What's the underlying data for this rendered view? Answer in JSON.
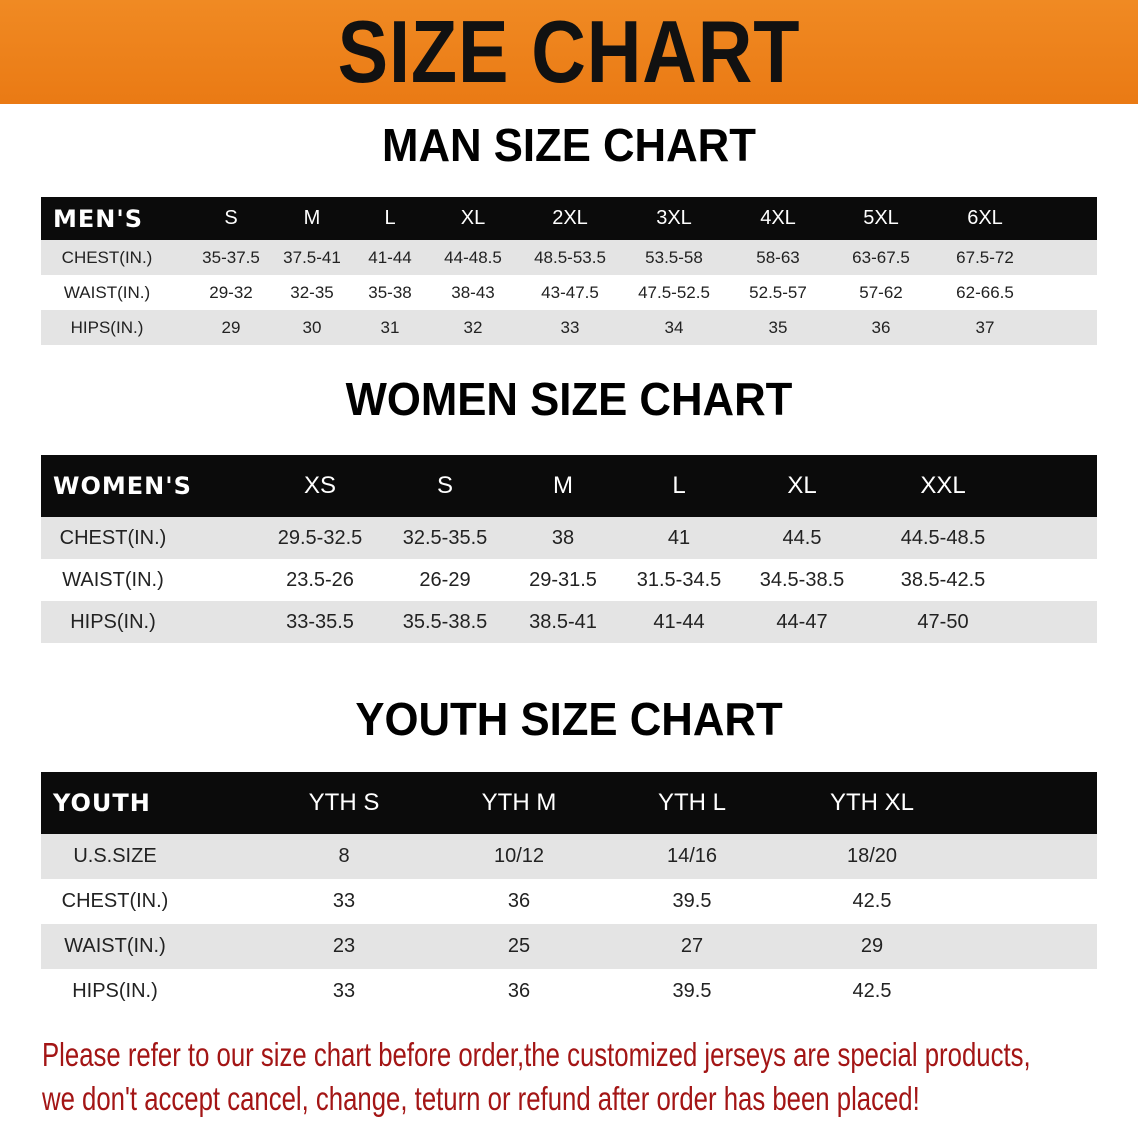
{
  "banner": {
    "title": "SIZE CHART",
    "color": "#ee8019"
  },
  "men": {
    "title": "MAN SIZE CHART",
    "header": [
      "MEN'S",
      "S",
      "M",
      "L",
      "XL",
      "2XL",
      "3XL",
      "4XL",
      "5XL",
      "6XL"
    ],
    "rows": [
      [
        "CHEST(IN.)",
        "35-37.5",
        "37.5-41",
        "41-44",
        "44-48.5",
        "48.5-53.5",
        "53.5-58",
        "58-63",
        "63-67.5",
        "67.5-72"
      ],
      [
        "WAIST(IN.)",
        "29-32",
        "32-35",
        "35-38",
        "38-43",
        "43-47.5",
        "47.5-52.5",
        "52.5-57",
        "57-62",
        "62-66.5"
      ],
      [
        "HIPS(IN.)",
        "29",
        "30",
        "31",
        "32",
        "33",
        "34",
        "35",
        "36",
        "37"
      ]
    ]
  },
  "women": {
    "title": "WOMEN SIZE CHART",
    "header": [
      "WOMEN'S",
      "XS",
      "S",
      "M",
      "L",
      "XL",
      "XXL"
    ],
    "rows": [
      [
        "CHEST(IN.)",
        "29.5-32.5",
        "32.5-35.5",
        "38",
        "41",
        "44.5",
        "44.5-48.5"
      ],
      [
        "WAIST(IN.)",
        "23.5-26",
        "26-29",
        "29-31.5",
        "31.5-34.5",
        "34.5-38.5",
        "38.5-42.5"
      ],
      [
        "HIPS(IN.)",
        "33-35.5",
        "35.5-38.5",
        "38.5-41",
        "41-44",
        "44-47",
        "47-50"
      ]
    ]
  },
  "youth": {
    "title": "YOUTH SIZE CHART",
    "header": [
      "YOUTH",
      "YTH S",
      "YTH M",
      "YTH L",
      "YTH XL"
    ],
    "rows": [
      [
        "U.S.SIZE",
        "8",
        "10/12",
        "14/16",
        "18/20"
      ],
      [
        "CHEST(IN.)",
        "33",
        "36",
        "39.5",
        "42.5"
      ],
      [
        "WAIST(IN.)",
        "23",
        "25",
        "27",
        "29"
      ],
      [
        "HIPS(IN.)",
        "33",
        "36",
        "39.5",
        "42.5"
      ]
    ]
  },
  "notice": {
    "line1": "Please refer to our size chart before order,the customized jerseys are special products,",
    "line2": "we don't accept cancel, change, teturn or refund after order has been placed!",
    "color": "#a31515"
  }
}
